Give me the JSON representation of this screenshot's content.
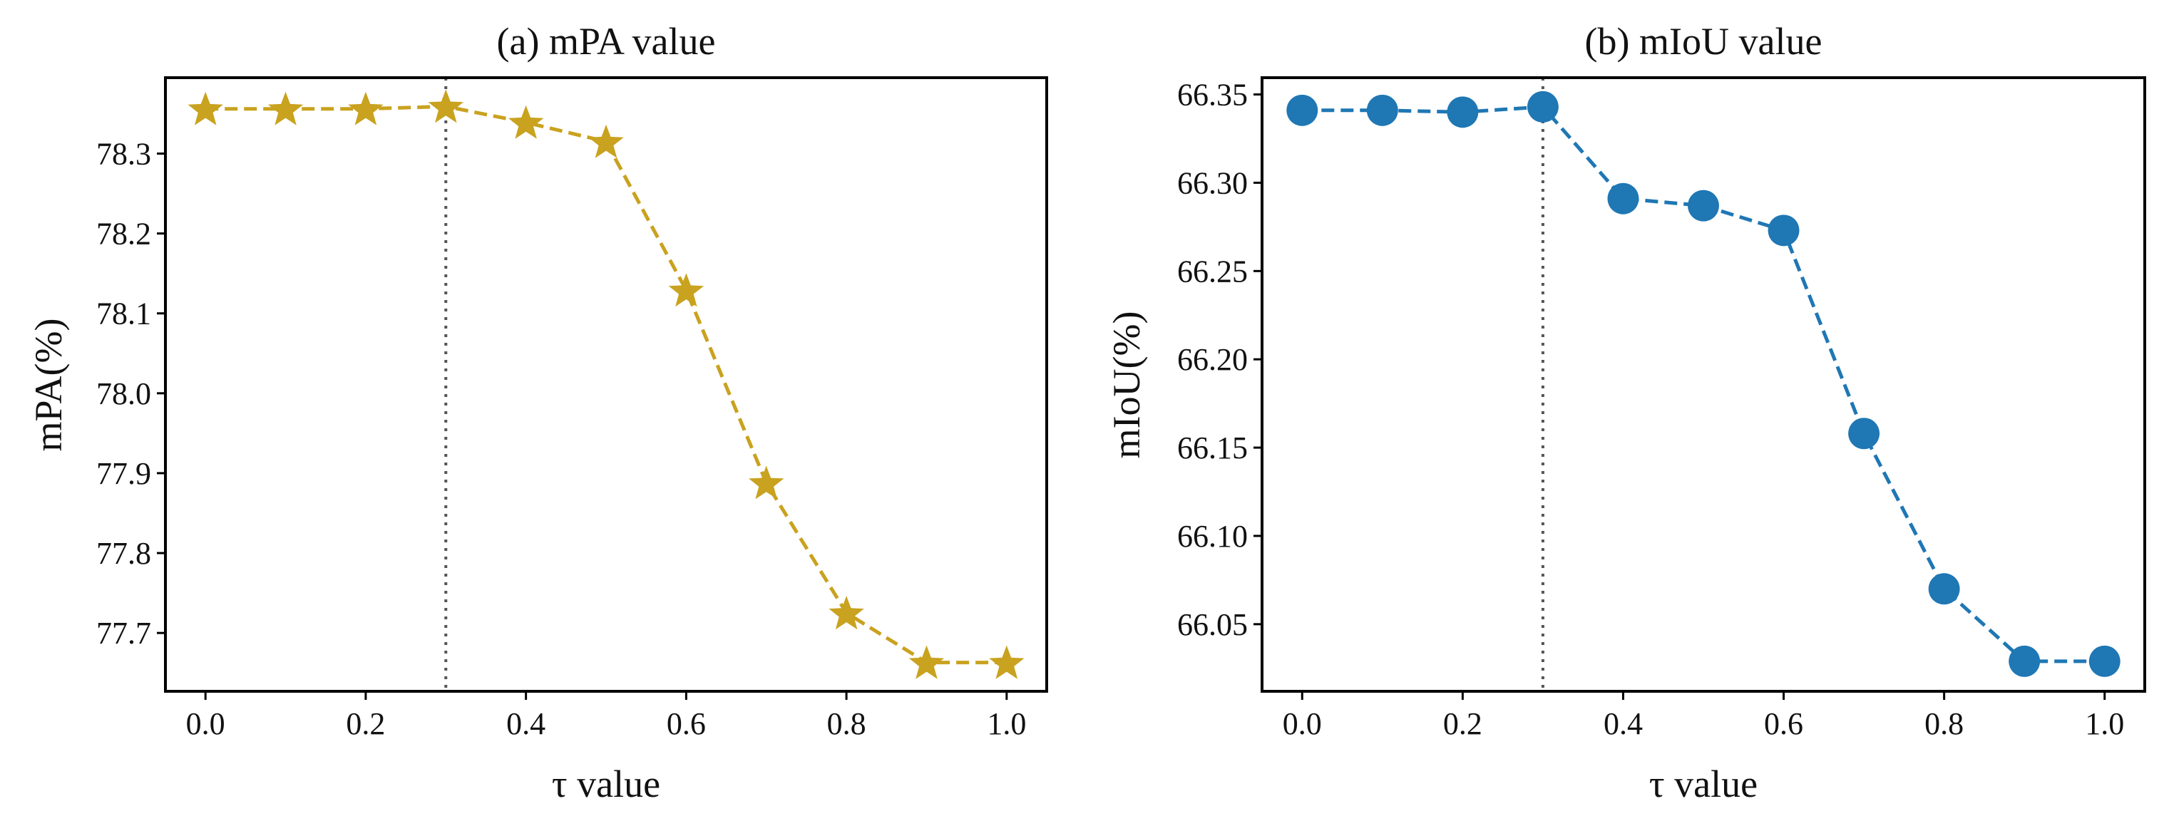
{
  "chart_data": [
    {
      "type": "line",
      "title": "(a) mPA value",
      "xlabel": "τ value",
      "ylabel": "mPA(%)",
      "x": [
        0.0,
        0.1,
        0.2,
        0.3,
        0.4,
        0.5,
        0.6,
        0.7,
        0.8,
        0.9,
        1.0
      ],
      "series": [
        {
          "values": [
            78.356,
            78.356,
            78.356,
            78.359,
            78.339,
            78.315,
            78.129,
            77.888,
            77.725,
            77.663,
            77.663
          ],
          "marker": "star",
          "line_style": "dashed",
          "color": "#C9A21F"
        }
      ],
      "xlim": [
        -0.05,
        1.05
      ],
      "ylim": [
        77.627,
        78.395
      ],
      "xticks": [
        "0.0",
        "0.2",
        "0.4",
        "0.6",
        "0.8",
        "1.0"
      ],
      "yticks": [
        "77.7",
        "77.8",
        "77.9",
        "78.0",
        "78.1",
        "78.2",
        "78.3"
      ],
      "vline": {
        "x": 0.3,
        "style": "dotted",
        "color": "#555555"
      },
      "grid": false
    },
    {
      "type": "line",
      "title": "(b) mIoU value",
      "xlabel": "τ value",
      "ylabel": "mIoU(%)",
      "x": [
        0.0,
        0.1,
        0.2,
        0.3,
        0.4,
        0.5,
        0.6,
        0.7,
        0.8,
        0.9,
        1.0
      ],
      "series": [
        {
          "values": [
            66.341,
            66.341,
            66.34,
            66.343,
            66.291,
            66.287,
            66.273,
            66.158,
            66.07,
            66.029,
            66.029
          ],
          "marker": "circle",
          "line_style": "dashed",
          "color": "#1F77B4"
        }
      ],
      "xlim": [
        -0.05,
        1.05
      ],
      "ylim": [
        66.012,
        66.3595
      ],
      "xticks": [
        "0.0",
        "0.2",
        "0.4",
        "0.6",
        "0.8",
        "1.0"
      ],
      "yticks": [
        "66.05",
        "66.10",
        "66.15",
        "66.20",
        "66.25",
        "66.30",
        "66.35"
      ],
      "vline": {
        "x": 0.3,
        "style": "dotted",
        "color": "#555555"
      },
      "grid": false
    }
  ]
}
